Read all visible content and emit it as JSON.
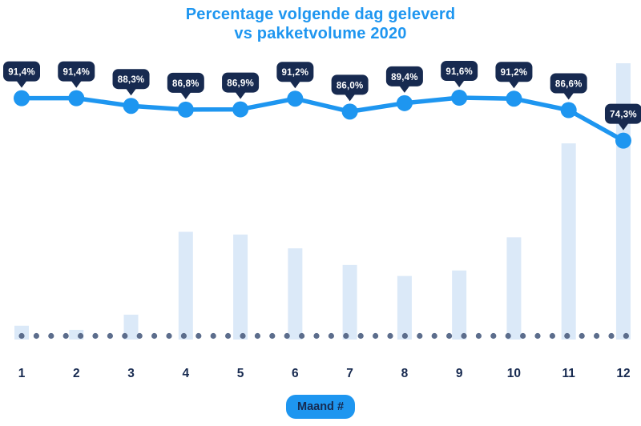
{
  "title": {
    "line1": "Percentage volgende dag geleverd",
    "line2": "vs pakketvolume 2020"
  },
  "x_axis": {
    "title": "Maand #",
    "months": [
      "1",
      "2",
      "3",
      "4",
      "5",
      "6",
      "7",
      "8",
      "9",
      "10",
      "11",
      "12"
    ]
  },
  "colors": {
    "accent_blue": "#1E96F0",
    "navy": "#172A50",
    "bar_fill": "#DBE9F8",
    "baseline_dot": "#5C6D8C",
    "tooltip_text": "#FFFFFF",
    "background": "#FFFFFF"
  },
  "chart_data": {
    "type": "combo",
    "title": "Percentage volgende dag geleverd vs pakketvolume 2020",
    "xlabel": "Maand #",
    "ylabel": "",
    "grid": false,
    "legend": "none",
    "categories": [
      "1",
      "2",
      "3",
      "4",
      "5",
      "6",
      "7",
      "8",
      "9",
      "10",
      "11",
      "12"
    ],
    "series": [
      {
        "name": "Percentage volgende dag geleverd",
        "type": "line",
        "unit": "%",
        "values": [
          91.4,
          91.4,
          88.3,
          86.8,
          86.9,
          91.2,
          86.0,
          89.4,
          91.6,
          91.2,
          86.6,
          74.3
        ],
        "labels": [
          "91,4%",
          "91,4%",
          "88,3%",
          "86,8%",
          "86,9%",
          "91,2%",
          "86,0%",
          "89,4%",
          "91,6%",
          "91,2%",
          "86,6%",
          "74,3%"
        ]
      },
      {
        "name": "Pakketvolume",
        "type": "bar",
        "unit": "relative volume, max month = 100 (estimated from bar heights, no value axis shown)",
        "values": [
          5,
          3.5,
          9,
          39,
          38,
          33,
          27,
          23,
          25,
          37,
          71,
          100
        ]
      }
    ]
  }
}
